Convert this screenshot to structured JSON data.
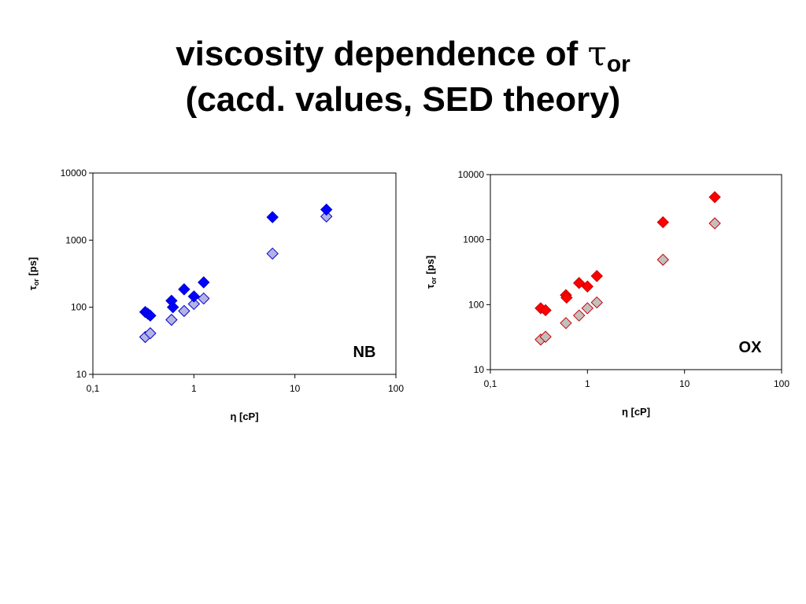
{
  "title": {
    "line1_prefix": "viscosity dependence of ",
    "tau": "τ",
    "sub": "or",
    "line2": "(cacd. values, SED theory)"
  },
  "chart_data": [
    {
      "type": "scatter",
      "label": "NB",
      "xlabel": "η  [cP]",
      "ylabel": "τor [ps]",
      "xscale": "log",
      "yscale": "log",
      "xlim": [
        0.1,
        100
      ],
      "ylim": [
        10,
        10000
      ],
      "xticks": [
        "0,1",
        "1",
        "10",
        "100"
      ],
      "yticks": [
        "10",
        "100",
        "1000",
        "10000"
      ],
      "grid": false,
      "legend": "none",
      "series": [
        {
          "color": "#0000ff",
          "edge": "#0000cc",
          "x": [
            0.33,
            0.35,
            0.37,
            0.6,
            0.62,
            0.8,
            1.0,
            1.25,
            6.0,
            20.5
          ],
          "y": [
            85,
            80,
            75,
            125,
            100,
            185,
            145,
            235,
            2200,
            2850
          ]
        },
        {
          "color": "#b3b3e6",
          "edge": "#0000cc",
          "x": [
            0.33,
            0.37,
            0.6,
            0.8,
            1.0,
            1.25,
            6.0,
            20.5
          ],
          "y": [
            36,
            41,
            65,
            88,
            112,
            135,
            630,
            2250
          ]
        }
      ]
    },
    {
      "type": "scatter",
      "label": "OX",
      "xlabel": "η  [cP]",
      "ylabel": "τor [ps]",
      "xscale": "log",
      "yscale": "log",
      "xlim": [
        0.1,
        100
      ],
      "ylim": [
        10,
        10000
      ],
      "xticks": [
        "0,1",
        "1",
        "10",
        "100"
      ],
      "yticks": [
        "10",
        "100",
        "1000",
        "10000"
      ],
      "grid": false,
      "legend": "none",
      "series": [
        {
          "color": "#ff0000",
          "edge": "#cc0000",
          "x": [
            0.33,
            0.37,
            0.6,
            0.61,
            0.82,
            1.0,
            1.25,
            6.0,
            20.5
          ],
          "y": [
            88,
            82,
            140,
            128,
            215,
            190,
            275,
            1850,
            4500
          ]
        },
        {
          "color": "#c0c0c0",
          "edge": "#cc0000",
          "x": [
            0.33,
            0.37,
            0.6,
            0.82,
            1.0,
            1.25,
            6.0,
            20.5
          ],
          "y": [
            29,
            32,
            52,
            68,
            88,
            108,
            490,
            1780
          ]
        }
      ]
    }
  ]
}
